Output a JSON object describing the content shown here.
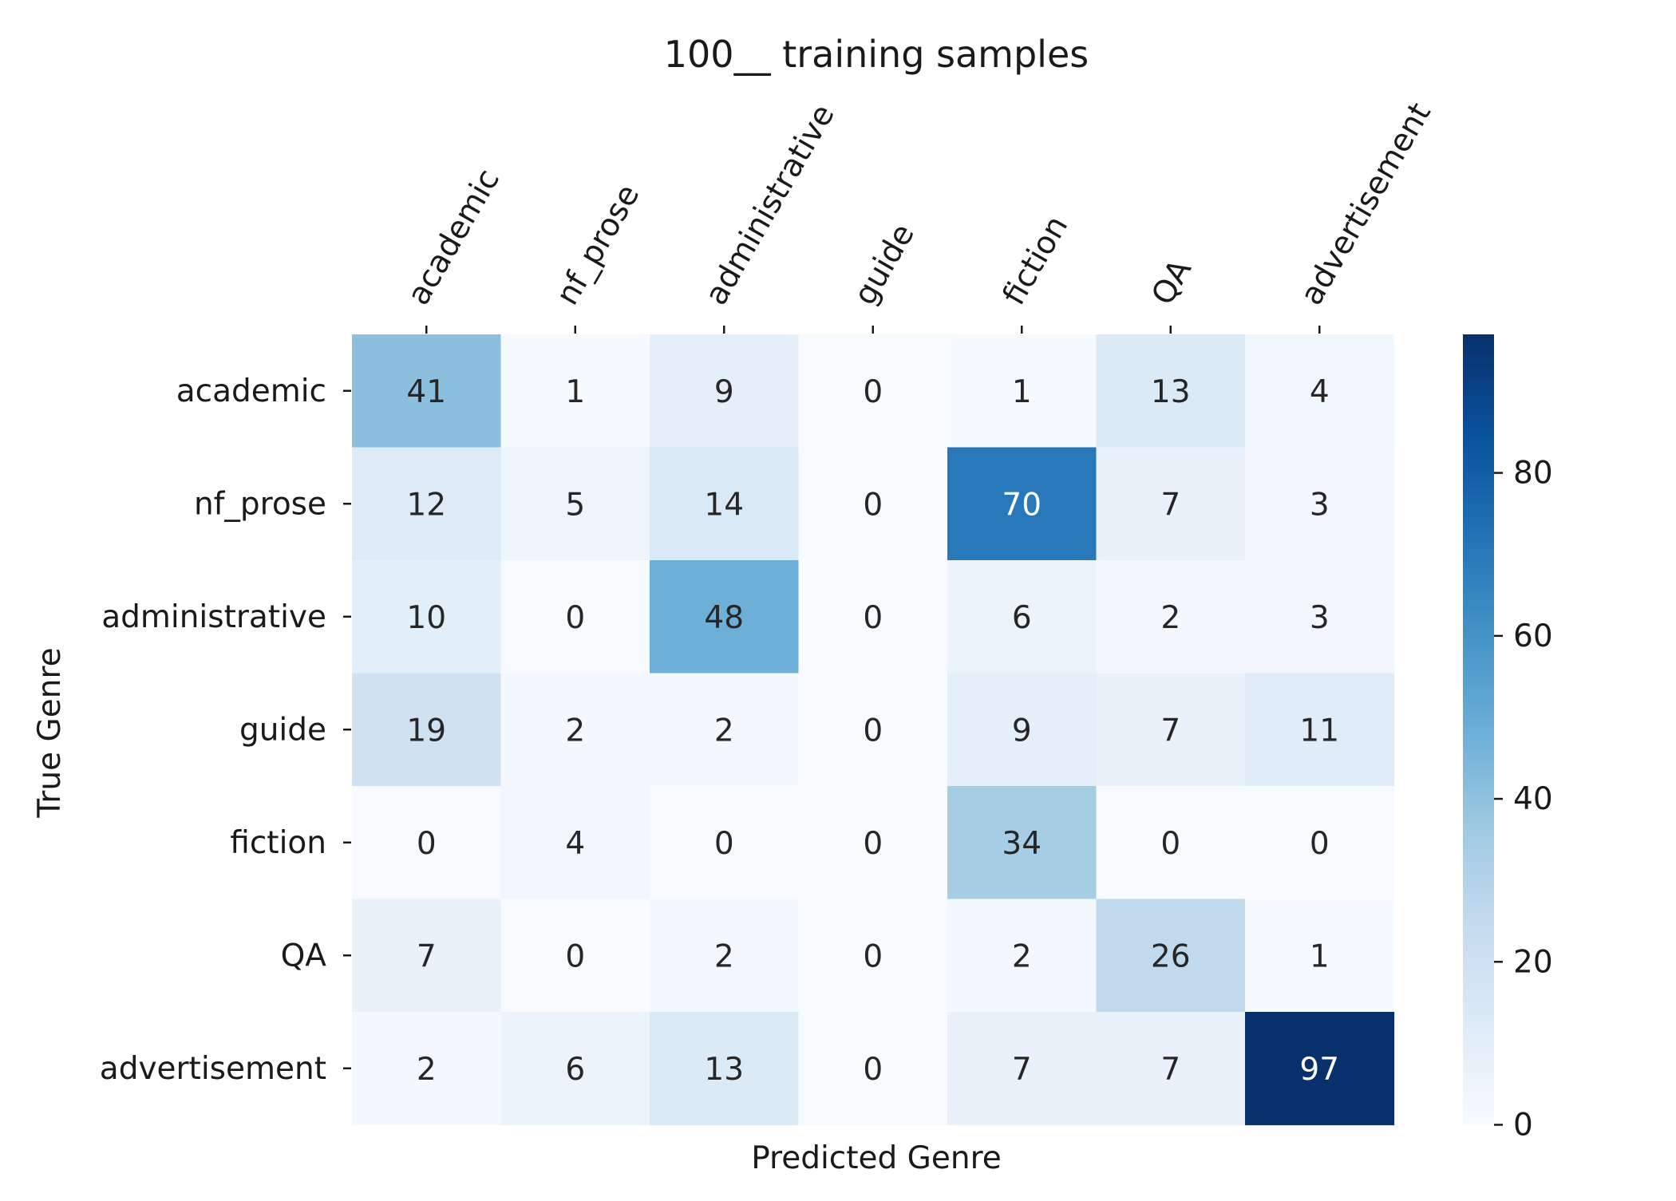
{
  "chart_data": {
    "type": "heatmap",
    "title": "100__ training samples",
    "xlabel": "Predicted Genre",
    "ylabel": "True Genre",
    "x_categories": [
      "academic",
      "nf_prose",
      "administrative",
      "guide",
      "fiction",
      "QA",
      "advertisement"
    ],
    "y_categories": [
      "academic",
      "nf_prose",
      "administrative",
      "guide",
      "fiction",
      "QA",
      "advertisement"
    ],
    "values": [
      [
        41,
        1,
        9,
        0,
        1,
        13,
        4
      ],
      [
        12,
        5,
        14,
        0,
        70,
        7,
        3
      ],
      [
        10,
        0,
        48,
        0,
        6,
        2,
        3
      ],
      [
        19,
        2,
        2,
        0,
        9,
        7,
        11
      ],
      [
        0,
        4,
        0,
        0,
        34,
        0,
        0
      ],
      [
        7,
        0,
        2,
        0,
        2,
        26,
        1
      ],
      [
        2,
        6,
        13,
        0,
        7,
        7,
        97
      ]
    ],
    "colormap": "Blues",
    "value_range": [
      0,
      97
    ],
    "colorbar_ticks": [
      0,
      20,
      40,
      60,
      80
    ],
    "x_tick_position": "top",
    "x_tick_rotation_deg": 60,
    "annotated": true
  }
}
